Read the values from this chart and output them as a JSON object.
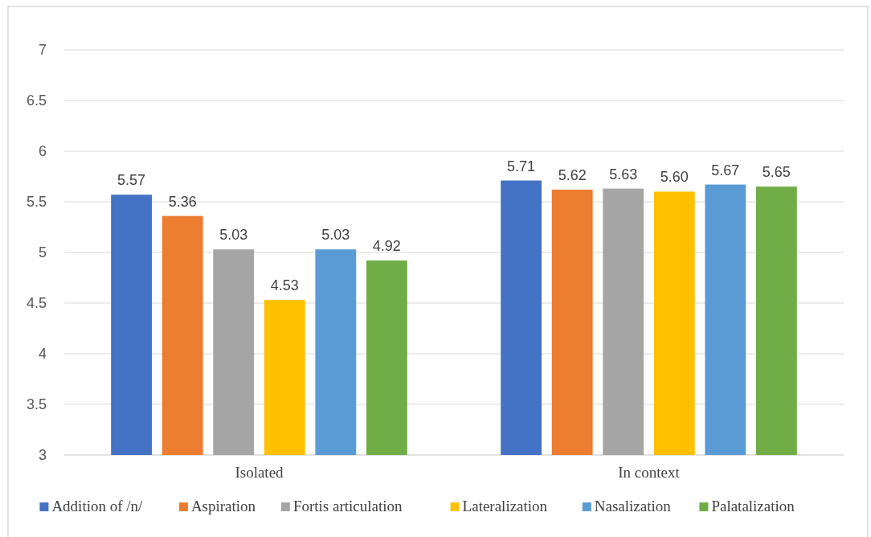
{
  "chart_data": {
    "type": "bar",
    "categories": [
      "Isolated",
      "In context"
    ],
    "series": [
      {
        "name": "Addition of /n/",
        "color": "#4472c4",
        "values": [
          5.57,
          5.71
        ],
        "value_labels": [
          "5.57",
          "5.71"
        ]
      },
      {
        "name": "Aspiration",
        "color": "#ed7d31",
        "values": [
          5.36,
          5.62
        ],
        "value_labels": [
          "5.36",
          "5.62"
        ]
      },
      {
        "name": "Fortis articulation",
        "color": "#a5a5a5",
        "values": [
          5.03,
          5.63
        ],
        "value_labels": [
          "5.03",
          "5.63"
        ]
      },
      {
        "name": "Lateralization",
        "color": "#ffc000",
        "values": [
          4.53,
          5.6
        ],
        "value_labels": [
          "4.53",
          "5.60"
        ]
      },
      {
        "name": "Nasalization",
        "color": "#5b9bd5",
        "values": [
          5.03,
          5.67
        ],
        "value_labels": [
          "5.03",
          "5.67"
        ]
      },
      {
        "name": "Palatalization",
        "color": "#70ad47",
        "values": [
          4.92,
          5.65
        ],
        "value_labels": [
          "4.92",
          "5.65"
        ]
      }
    ],
    "ylim": [
      3,
      7
    ],
    "yticks": [
      3,
      3.5,
      4,
      4.5,
      5,
      5.5,
      6,
      6.5,
      7
    ],
    "grid": "y",
    "legend": "bottom"
  }
}
